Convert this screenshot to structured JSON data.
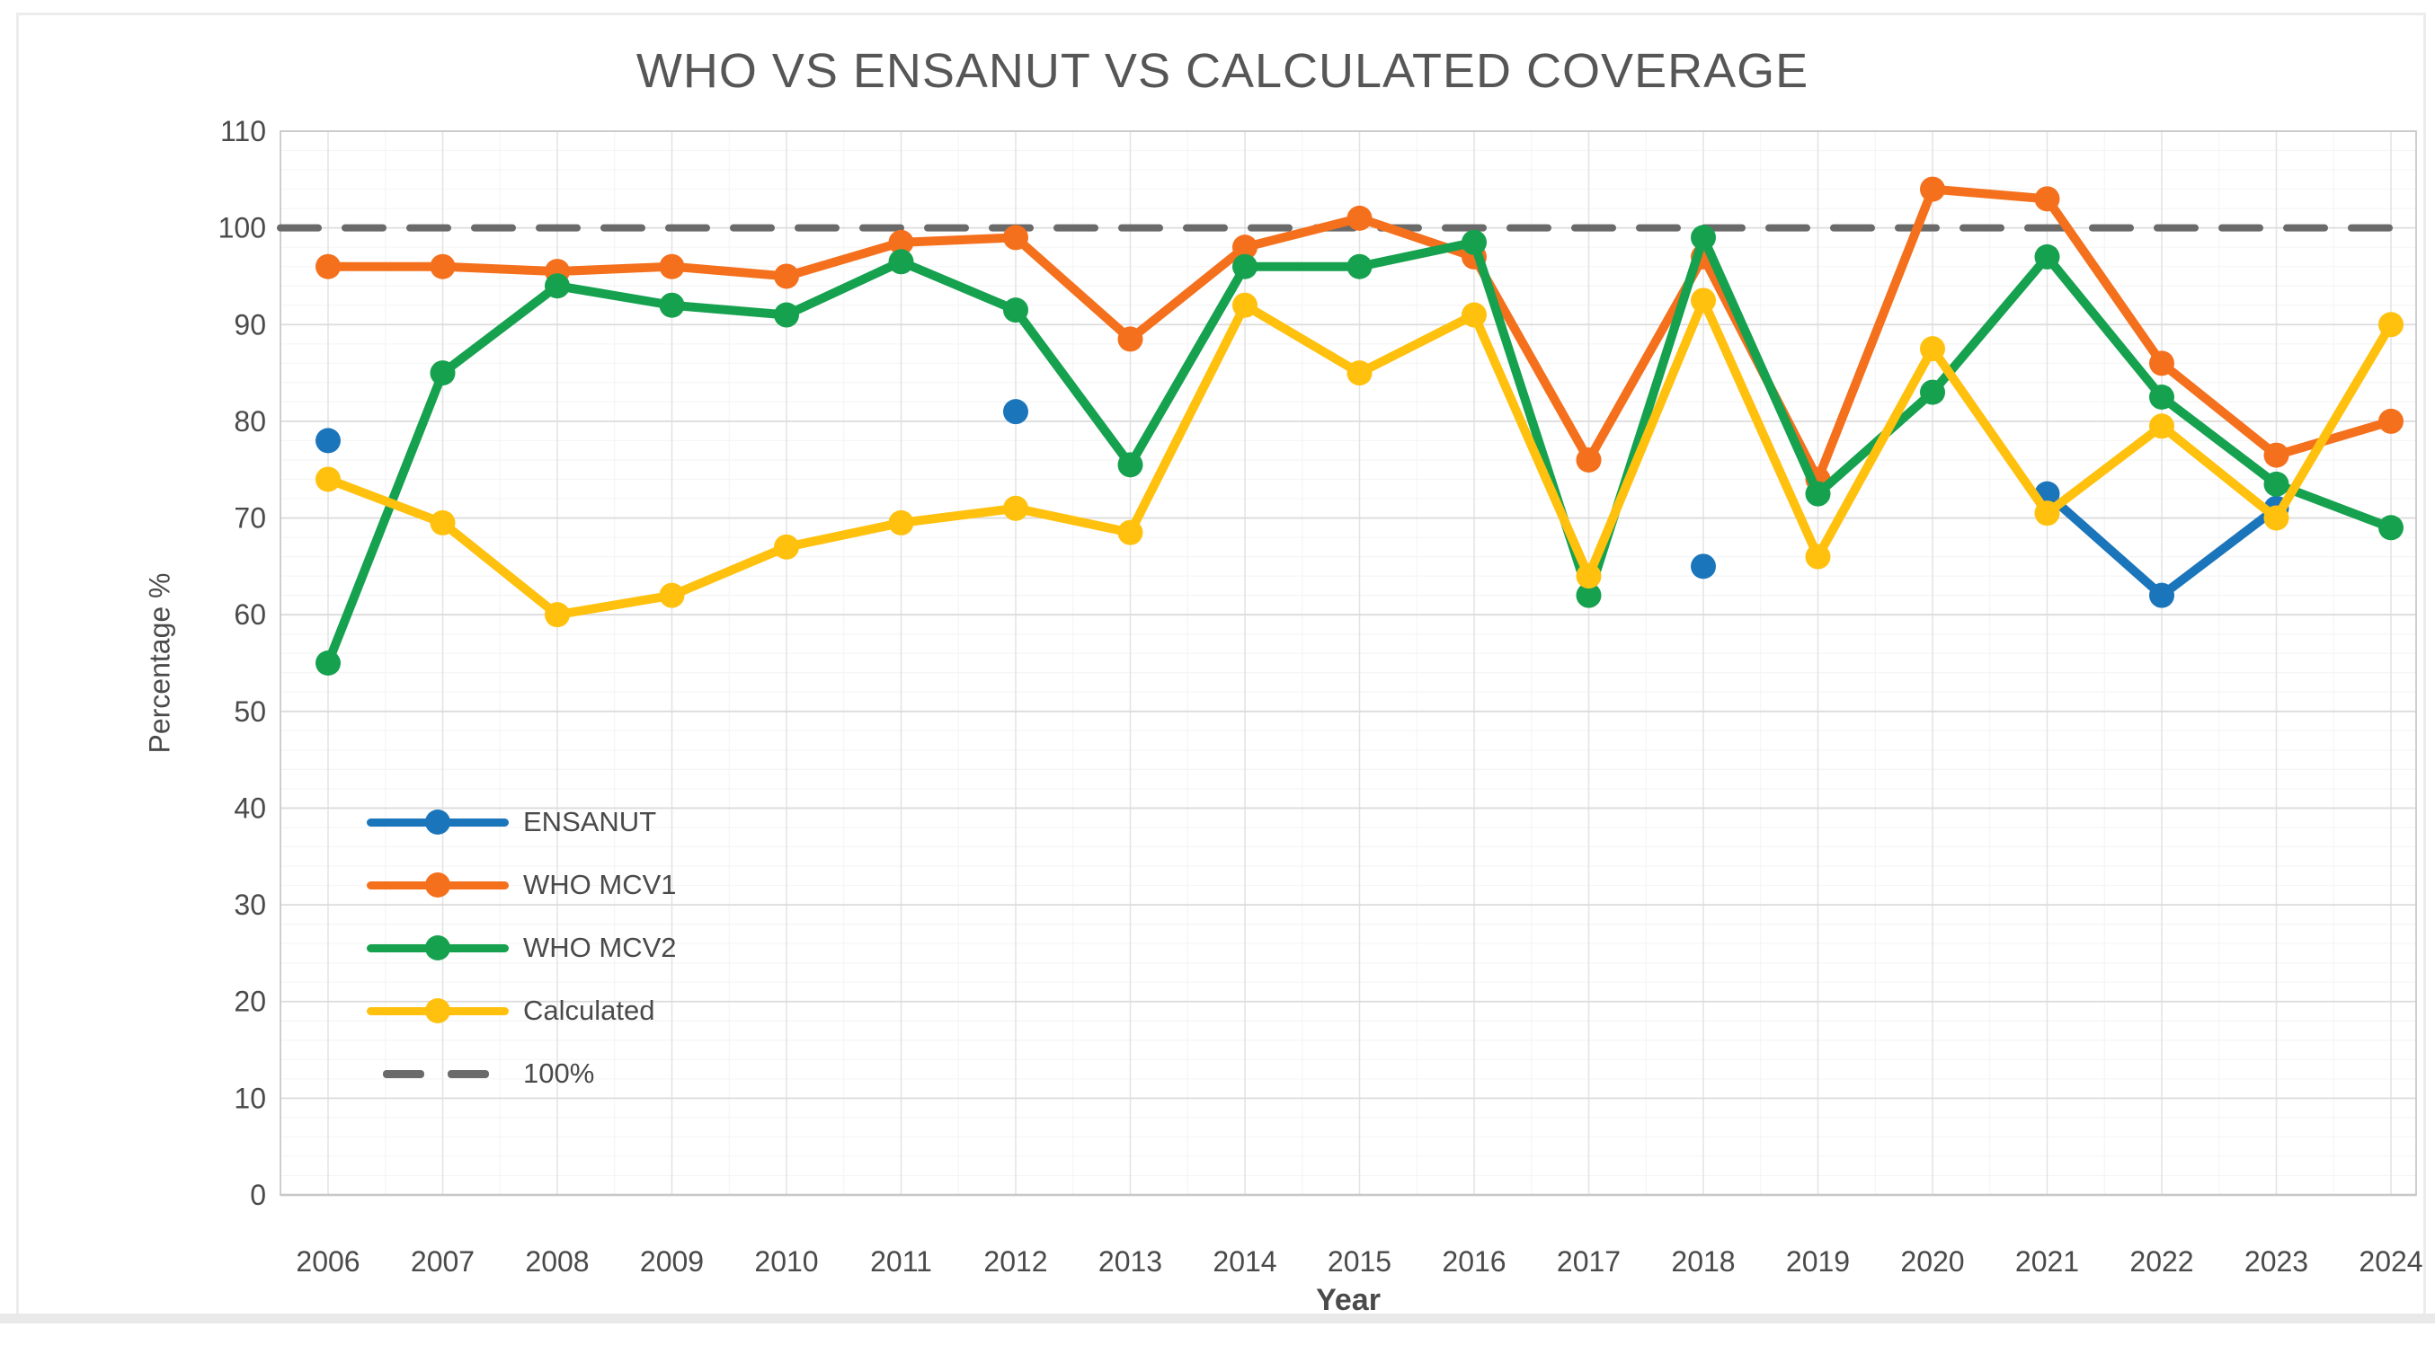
{
  "page": {
    "background": "#ffffff"
  },
  "chart_data": {
    "type": "line",
    "title": "WHO VS ENSANUT VS CALCULATED COVERAGE",
    "xlabel": "Year",
    "ylabel": "Percentage %",
    "x": [
      2006,
      2007,
      2008,
      2009,
      2010,
      2011,
      2012,
      2013,
      2014,
      2015,
      2016,
      2017,
      2018,
      2019,
      2020,
      2021,
      2022,
      2023,
      2024
    ],
    "ylim": [
      0,
      110
    ],
    "ytick_step": 10,
    "grid": "major and minor gridlines, light gray",
    "legend_position": "inside-left",
    "series": [
      {
        "name": "ENSANUT",
        "color": "#1B75BB",
        "values": [
          78,
          null,
          null,
          null,
          null,
          null,
          81,
          null,
          null,
          null,
          null,
          null,
          65,
          null,
          null,
          72.5,
          62,
          71,
          null
        ]
      },
      {
        "name": "WHO MCV1",
        "color": "#F4701D",
        "values": [
          96,
          96,
          95.5,
          96,
          95,
          98.5,
          99,
          88.5,
          98,
          101,
          97,
          76,
          97,
          74,
          104,
          103,
          86,
          76.5,
          80
        ]
      },
      {
        "name": "WHO MCV2",
        "color": "#16A14F",
        "values": [
          55,
          85,
          94,
          92,
          91,
          96.5,
          91.5,
          75.5,
          96,
          96,
          98.5,
          62,
          99,
          72.5,
          83,
          97,
          82.5,
          73.5,
          69
        ]
      },
      {
        "name": "Calculated",
        "color": "#FFC10D",
        "values": [
          74,
          69.5,
          60,
          62,
          67,
          69.5,
          71,
          68.5,
          92,
          85,
          91,
          64,
          92.5,
          66,
          87.5,
          70.5,
          79.5,
          70,
          90
        ]
      }
    ],
    "reference_line": {
      "name": "100%",
      "value": 100,
      "color": "#6A6A6A",
      "style": "dashed"
    },
    "text_color": "#4A4A4A",
    "grid_major_color": "#DCDCDC",
    "grid_minor_color": "#F5F5F5",
    "axis_line_color": "#C9C9C9"
  }
}
